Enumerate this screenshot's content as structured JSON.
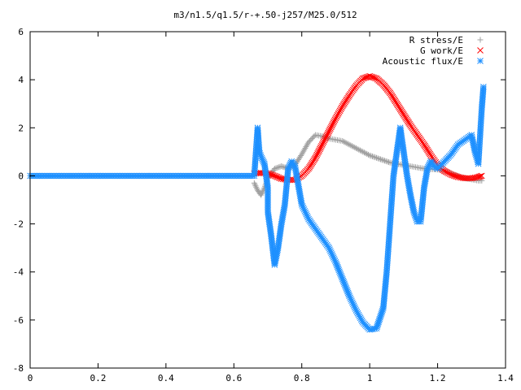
{
  "chart_data": {
    "type": "scatter",
    "title": "m3/n1.5/q1.5/r-+.50-j257/M25.0/512",
    "xlabel": "",
    "ylabel": "",
    "xlim": [
      0,
      1.4
    ],
    "ylim": [
      -8,
      6
    ],
    "x_ticks": [
      "0",
      "0.2",
      "0.4",
      "0.6",
      "0.8",
      "1",
      "1.2",
      "1.4"
    ],
    "y_ticks": [
      "-8",
      "-6",
      "-4",
      "-2",
      "0",
      "2",
      "4",
      "6"
    ],
    "legend_position": "top-right",
    "grid": false,
    "series": [
      {
        "name": "R stress/E",
        "marker": "plus",
        "color": "#a0a0a0",
        "points": [
          [
            0.66,
            -0.3
          ],
          [
            0.67,
            -0.6
          ],
          [
            0.68,
            -0.8
          ],
          [
            0.69,
            -0.5
          ],
          [
            0.7,
            -0.1
          ],
          [
            0.72,
            0.3
          ],
          [
            0.74,
            0.4
          ],
          [
            0.76,
            0.3
          ],
          [
            0.78,
            0.45
          ],
          [
            0.8,
            0.9
          ],
          [
            0.82,
            1.4
          ],
          [
            0.84,
            1.7
          ],
          [
            0.86,
            1.65
          ],
          [
            0.88,
            1.55
          ],
          [
            0.9,
            1.5
          ],
          [
            0.92,
            1.45
          ],
          [
            0.94,
            1.3
          ],
          [
            0.96,
            1.15
          ],
          [
            0.98,
            1.0
          ],
          [
            1.0,
            0.85
          ],
          [
            1.02,
            0.75
          ],
          [
            1.04,
            0.65
          ],
          [
            1.06,
            0.55
          ],
          [
            1.08,
            0.5
          ],
          [
            1.1,
            0.45
          ],
          [
            1.12,
            0.4
          ],
          [
            1.14,
            0.35
          ],
          [
            1.16,
            0.3
          ],
          [
            1.18,
            0.28
          ],
          [
            1.2,
            0.26
          ],
          [
            1.22,
            0.2
          ],
          [
            1.24,
            0.1
          ],
          [
            1.26,
            0.0
          ],
          [
            1.28,
            -0.1
          ],
          [
            1.3,
            -0.15
          ],
          [
            1.32,
            -0.2
          ],
          [
            1.33,
            -0.2
          ]
        ]
      },
      {
        "name": "G work/E",
        "marker": "cross",
        "color": "#ff0000",
        "points": [
          [
            0.66,
            0.1
          ],
          [
            0.68,
            0.12
          ],
          [
            0.7,
            0.1
          ],
          [
            0.72,
            0.0
          ],
          [
            0.74,
            -0.12
          ],
          [
            0.76,
            -0.17
          ],
          [
            0.78,
            -0.17
          ],
          [
            0.8,
            0.0
          ],
          [
            0.82,
            0.3
          ],
          [
            0.84,
            0.75
          ],
          [
            0.86,
            1.3
          ],
          [
            0.88,
            1.85
          ],
          [
            0.9,
            2.4
          ],
          [
            0.92,
            2.9
          ],
          [
            0.94,
            3.35
          ],
          [
            0.96,
            3.75
          ],
          [
            0.98,
            4.05
          ],
          [
            1.0,
            4.15
          ],
          [
            1.02,
            4.05
          ],
          [
            1.04,
            3.8
          ],
          [
            1.06,
            3.45
          ],
          [
            1.08,
            3.0
          ],
          [
            1.1,
            2.55
          ],
          [
            1.12,
            2.1
          ],
          [
            1.14,
            1.7
          ],
          [
            1.16,
            1.3
          ],
          [
            1.18,
            0.85
          ],
          [
            1.2,
            0.45
          ],
          [
            1.22,
            0.2
          ],
          [
            1.24,
            0.05
          ],
          [
            1.26,
            -0.05
          ],
          [
            1.28,
            -0.1
          ],
          [
            1.3,
            -0.1
          ],
          [
            1.32,
            -0.05
          ],
          [
            1.33,
            0.0
          ]
        ]
      },
      {
        "name": "Acoustic flux/E",
        "marker": "star",
        "color": "#1e90ff",
        "points": [
          [
            0.0,
            0.0
          ],
          [
            0.05,
            0.0
          ],
          [
            0.1,
            0.0
          ],
          [
            0.15,
            0.0
          ],
          [
            0.2,
            0.0
          ],
          [
            0.25,
            0.0
          ],
          [
            0.3,
            0.0
          ],
          [
            0.35,
            0.0
          ],
          [
            0.4,
            0.0
          ],
          [
            0.45,
            0.0
          ],
          [
            0.5,
            0.0
          ],
          [
            0.55,
            0.0
          ],
          [
            0.6,
            0.0
          ],
          [
            0.65,
            0.0
          ],
          [
            0.66,
            0.0
          ],
          [
            0.67,
            2.0
          ],
          [
            0.675,
            1.0
          ],
          [
            0.68,
            0.8
          ],
          [
            0.69,
            0.5
          ],
          [
            0.7,
            -0.5
          ],
          [
            0.7,
            -1.5
          ],
          [
            0.71,
            -2.5
          ],
          [
            0.72,
            -3.7
          ],
          [
            0.73,
            -3.0
          ],
          [
            0.74,
            -2.0
          ],
          [
            0.75,
            -1.2
          ],
          [
            0.76,
            0.3
          ],
          [
            0.77,
            0.6
          ],
          [
            0.78,
            0.4
          ],
          [
            0.79,
            -0.4
          ],
          [
            0.8,
            -1.2
          ],
          [
            0.82,
            -1.8
          ],
          [
            0.84,
            -2.2
          ],
          [
            0.86,
            -2.6
          ],
          [
            0.88,
            -3.0
          ],
          [
            0.9,
            -3.6
          ],
          [
            0.92,
            -4.3
          ],
          [
            0.94,
            -5.0
          ],
          [
            0.96,
            -5.6
          ],
          [
            0.98,
            -6.1
          ],
          [
            1.0,
            -6.4
          ],
          [
            1.02,
            -6.35
          ],
          [
            1.04,
            -5.5
          ],
          [
            1.05,
            -4.0
          ],
          [
            1.06,
            -2.0
          ],
          [
            1.07,
            0.0
          ],
          [
            1.08,
            1.0
          ],
          [
            1.09,
            2.0
          ],
          [
            1.1,
            1.0
          ],
          [
            1.11,
            0.0
          ],
          [
            1.12,
            -0.8
          ],
          [
            1.13,
            -1.5
          ],
          [
            1.14,
            -1.9
          ],
          [
            1.15,
            -1.9
          ],
          [
            1.16,
            -0.5
          ],
          [
            1.17,
            0.3
          ],
          [
            1.18,
            0.6
          ],
          [
            1.19,
            0.4
          ],
          [
            1.2,
            0.3
          ],
          [
            1.22,
            0.6
          ],
          [
            1.24,
            0.9
          ],
          [
            1.26,
            1.3
          ],
          [
            1.28,
            1.5
          ],
          [
            1.3,
            1.7
          ],
          [
            1.31,
            1.0
          ],
          [
            1.32,
            0.5
          ],
          [
            1.33,
            2.8
          ],
          [
            1.335,
            3.7
          ]
        ]
      }
    ]
  }
}
